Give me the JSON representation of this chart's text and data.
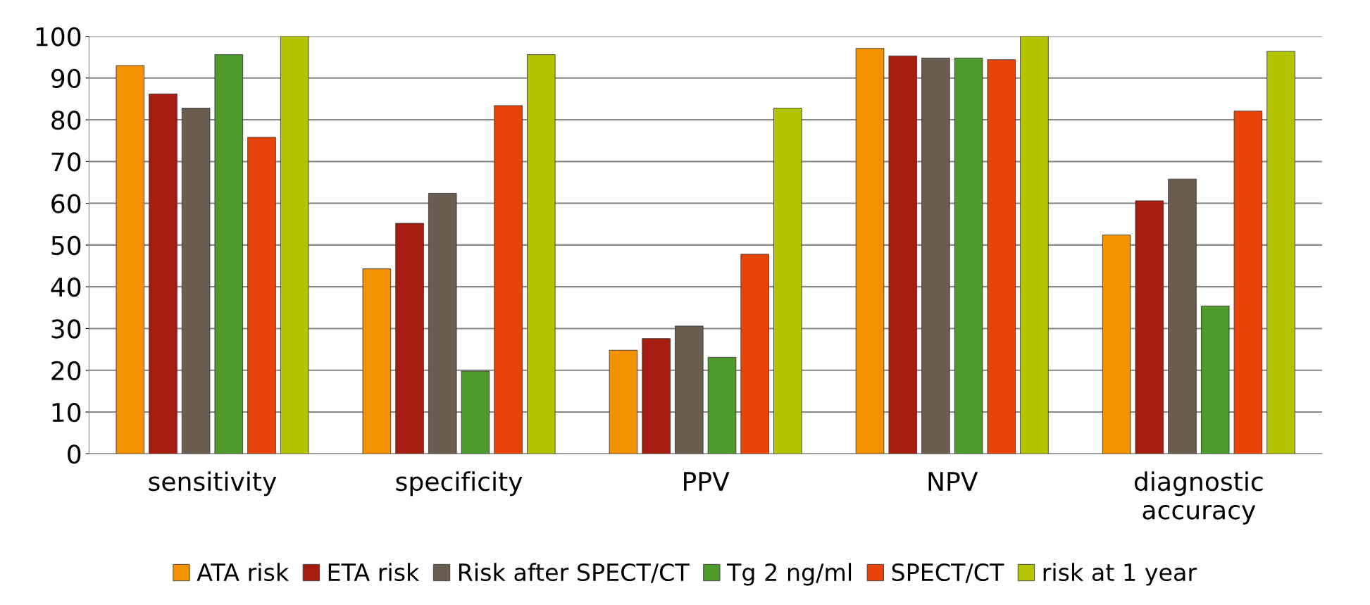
{
  "chart_data": {
    "type": "bar",
    "categories": [
      "sensitivity",
      "specificity",
      "PPV",
      "NPV",
      "diagnostic\naccuracy"
    ],
    "series": [
      {
        "name": "ATA risk",
        "color": "#f39200",
        "values": [
          93,
          44.3,
          24.8,
          97.1,
          52.4
        ]
      },
      {
        "name": "ETA risk",
        "color": "#a51d10",
        "values": [
          86.2,
          55.2,
          27.6,
          95.3,
          60.6
        ]
      },
      {
        "name": "Risk after SPECT/CT",
        "color": "#6b5e50",
        "values": [
          82.8,
          62.4,
          30.6,
          94.8,
          65.8
        ]
      },
      {
        "name": "Tg 2 ng/ml",
        "color": "#4f9a2c",
        "values": [
          95.6,
          19.8,
          23.1,
          94.8,
          35.4
        ]
      },
      {
        "name": "SPECT/CT",
        "color": "#e8440a",
        "values": [
          75.8,
          83.4,
          47.8,
          94.4,
          82.1
        ]
      },
      {
        "name": "risk at 1 year",
        "color": "#b5c400",
        "values": [
          100,
          95.6,
          82.8,
          100,
          96.4
        ]
      }
    ],
    "ylim": [
      0,
      100
    ],
    "yticks": [
      0,
      10,
      20,
      30,
      40,
      50,
      60,
      70,
      80,
      90,
      100
    ],
    "grid": "y",
    "legend": "bottom"
  }
}
